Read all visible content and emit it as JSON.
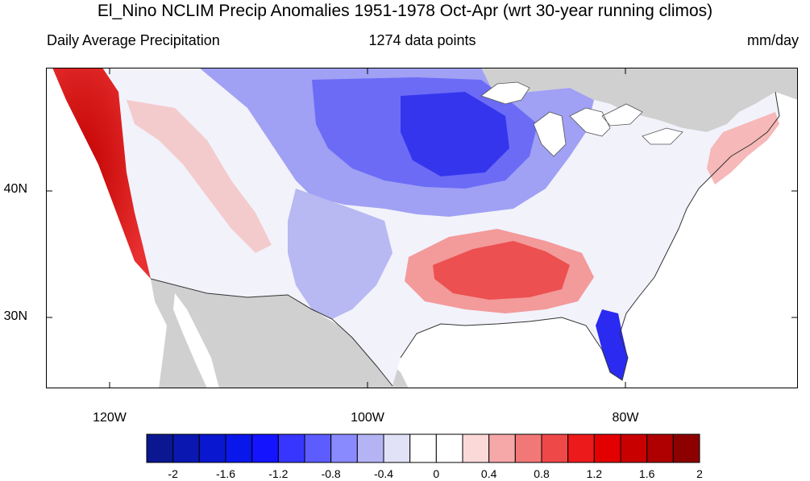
{
  "header": {
    "title": "El_Nino NCLIM Precip Anomalies 1951-1978 Oct-Apr (wrt 30-year running climos)",
    "left_subtitle": "Daily Average Precipitation",
    "center_subtitle": "1274 data points",
    "right_subtitle": "mm/day"
  },
  "map": {
    "lat_labels": [
      "40N",
      "30N"
    ],
    "lon_labels": [
      "120W",
      "100W",
      "80W"
    ],
    "land_color": "#d0d0d0",
    "ocean_color": "#ffffff"
  },
  "colorbar": {
    "colors": [
      "#0a1790",
      "#0a17b0",
      "#0a17d0",
      "#0a17ea",
      "#1414ff",
      "#3636ff",
      "#5c5cff",
      "#8a8aff",
      "#b4b4f5",
      "#e1e1f8",
      "#ffffff",
      "#ffffff",
      "#fbd9d9",
      "#f6a7a7",
      "#f27878",
      "#ef4848",
      "#ec1a1a",
      "#e30000",
      "#c80000",
      "#ae0000",
      "#8c0000"
    ],
    "labels": [
      "-2",
      "-1.6",
      "-1.2",
      "-0.8",
      "-0.4",
      "0",
      "0.4",
      "0.8",
      "1.2",
      "1.6",
      "2"
    ]
  }
}
